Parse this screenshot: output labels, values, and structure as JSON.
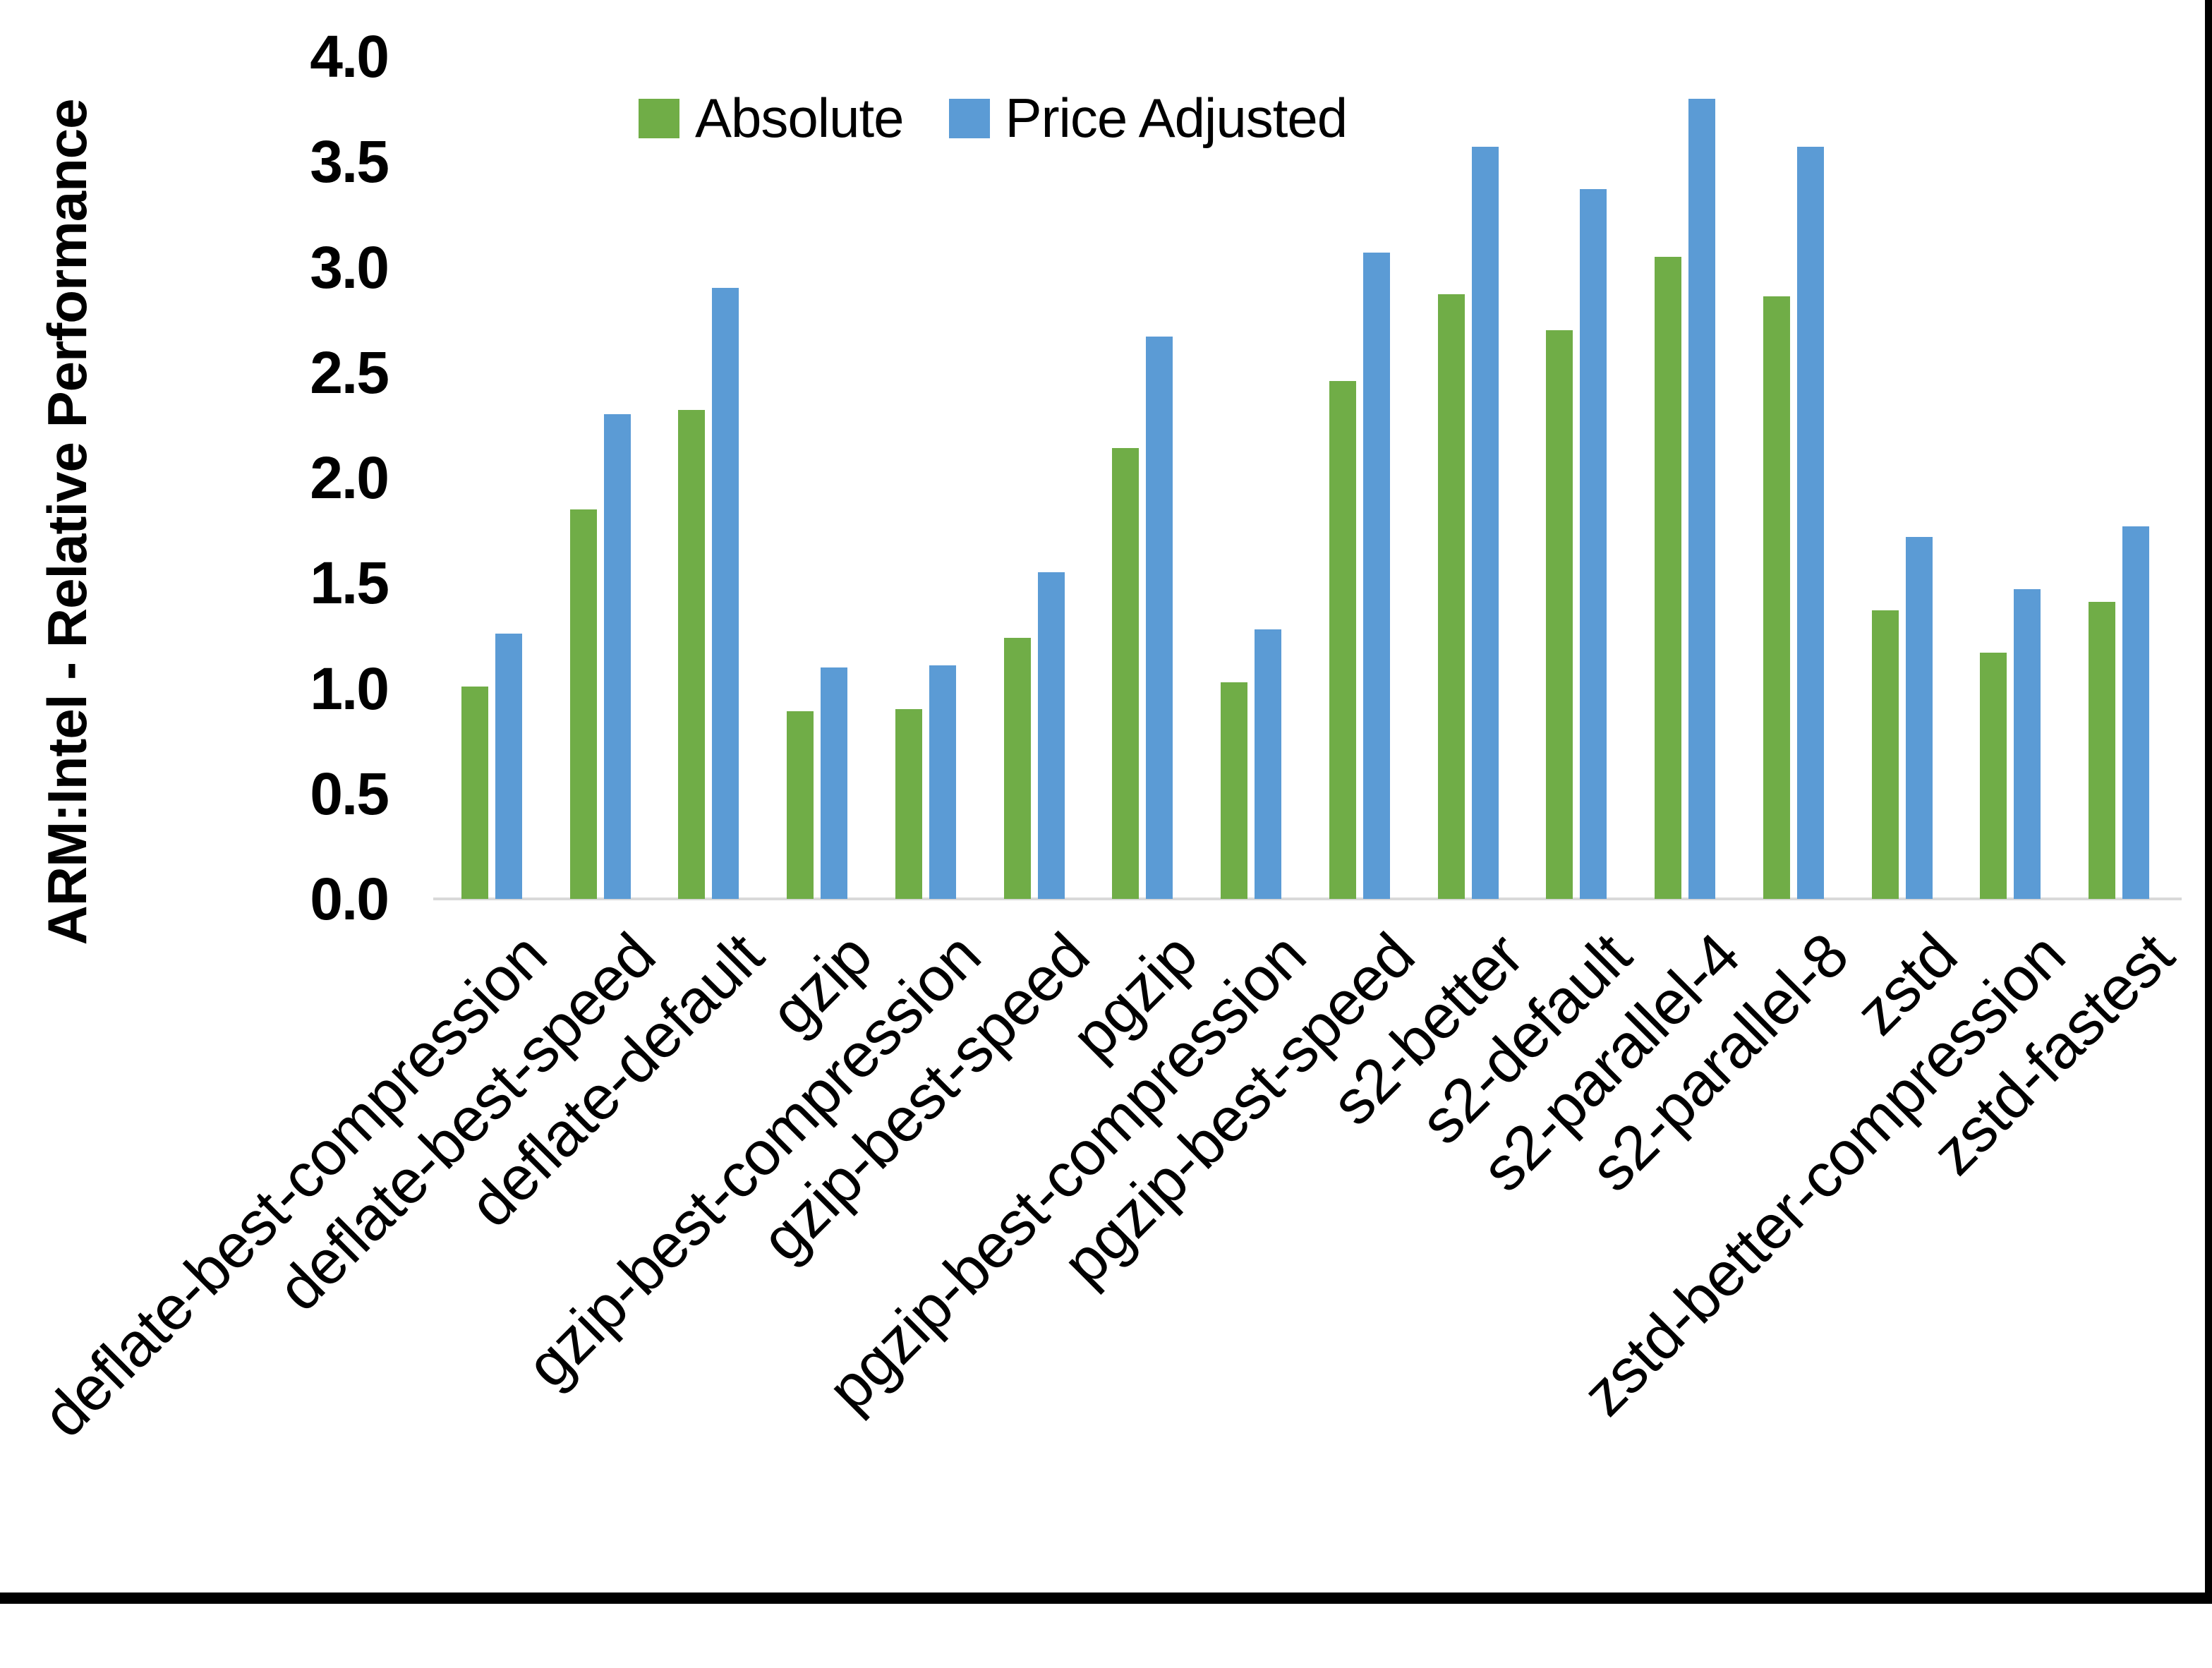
{
  "chart_data": {
    "type": "bar",
    "title": "",
    "ylabel": "ARM:Intel - Relative Performance",
    "xlabel": "",
    "ylim": [
      0,
      4
    ],
    "ytick_step": 0.5,
    "ytick_labels": [
      "0.0",
      "0.5",
      "1.0",
      "1.5",
      "2.0",
      "2.5",
      "3.0",
      "3.5",
      "4.0"
    ],
    "grid": false,
    "legend_position": "top-center",
    "categories": [
      "deflate-best-compression",
      "deflate-best-speed",
      "deflate-default",
      "gzip",
      "gzip-best-compression",
      "gzip-best-speed",
      "pgzip",
      "pgzip-best-compression",
      "pgzip-best-speed",
      "s2-better",
      "s2-default",
      "s2-parallel-4",
      "s2-parallel-8",
      "zstd",
      "zstd-better-compression",
      "zstd-fastest"
    ],
    "series": [
      {
        "name": "Absolute",
        "color": "#70AD47",
        "values": [
          1.01,
          1.85,
          2.32,
          0.89,
          0.9,
          1.24,
          2.14,
          1.03,
          2.46,
          2.87,
          2.7,
          3.05,
          2.86,
          1.37,
          1.17,
          1.41
        ]
      },
      {
        "name": "Price Adjusted",
        "color": "#5B9BD5",
        "values": [
          1.26,
          2.3,
          2.9,
          1.1,
          1.11,
          1.55,
          2.67,
          1.28,
          3.07,
          3.57,
          3.37,
          3.8,
          3.57,
          1.72,
          1.47,
          1.77
        ]
      }
    ]
  },
  "colors": {
    "axis_line": "#d9d9d9",
    "text": "#000000",
    "frame_border": "#000000",
    "background": "#ffffff"
  }
}
